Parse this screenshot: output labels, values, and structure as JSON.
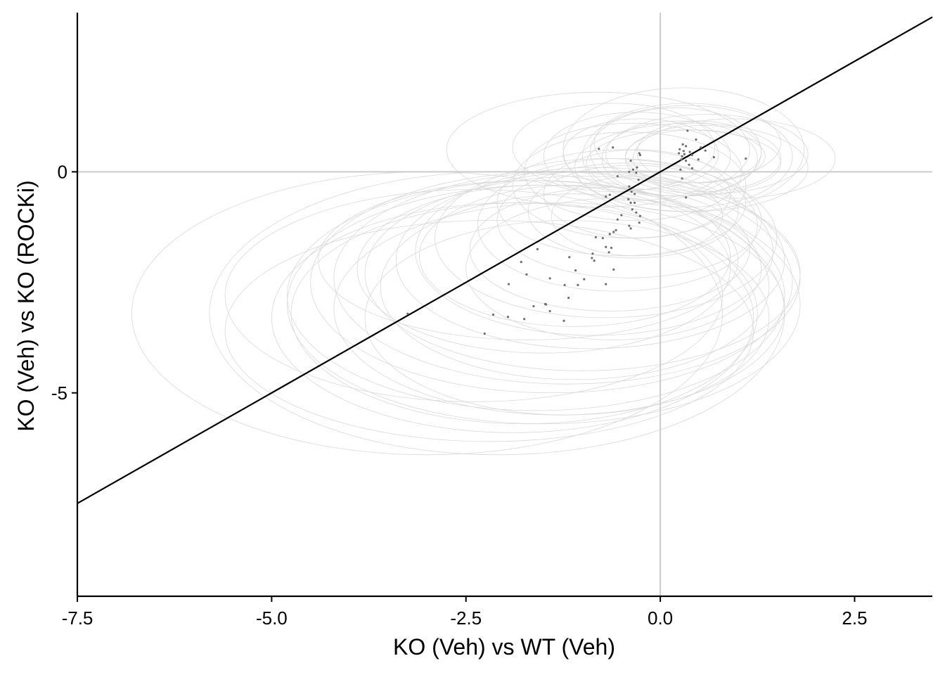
{
  "chart_data": {
    "type": "scatter",
    "xlabel": "KO (Veh) vs WT (Veh)",
    "ylabel": "KO (Veh) vs KO (ROCKi)",
    "xlim": [
      -7.5,
      3.5
    ],
    "ylim": [
      -9.6,
      3.6
    ],
    "x_ticks": [
      -7.5,
      -5.0,
      -2.5,
      0.0,
      2.5
    ],
    "x_tick_labels": [
      "-7.5",
      "-5.0",
      "-2.5",
      "0.0",
      "2.5"
    ],
    "y_ticks": [
      0,
      -5
    ],
    "y_tick_labels": [
      "0",
      "-5"
    ],
    "reference_lines": {
      "horizontal_y": 0,
      "vertical_x": 0,
      "diagonal_slope": 1,
      "diagonal_intercept": 0
    },
    "colors": {
      "points": "#6e6e6e",
      "ellipses": "#d9d9d9",
      "reference": "#cccccc",
      "diagonal": "#000000",
      "axis": "#000000"
    },
    "points": [
      {
        "x": 0.35,
        "y": 0.93
      },
      {
        "x": 0.46,
        "y": 0.73
      },
      {
        "x": 0.29,
        "y": 0.62
      },
      {
        "x": 0.33,
        "y": 0.58
      },
      {
        "x": 0.25,
        "y": 0.51
      },
      {
        "x": 0.3,
        "y": 0.47
      },
      {
        "x": 0.38,
        "y": 0.45
      },
      {
        "x": 0.52,
        "y": 0.55
      },
      {
        "x": 0.58,
        "y": 0.48
      },
      {
        "x": 0.41,
        "y": 0.38
      },
      {
        "x": 0.28,
        "y": 0.35
      },
      {
        "x": 0.33,
        "y": 0.25
      },
      {
        "x": 0.49,
        "y": 0.28
      },
      {
        "x": 0.69,
        "y": 0.33
      },
      {
        "x": 1.1,
        "y": 0.3
      },
      {
        "x": 0.37,
        "y": 0.16
      },
      {
        "x": 0.41,
        "y": 0.08
      },
      {
        "x": 0.26,
        "y": 0.05
      },
      {
        "x": 0.28,
        "y": -0.15
      },
      {
        "x": 0.33,
        "y": -0.58
      },
      {
        "x": 0.24,
        "y": 0.42
      },
      {
        "x": 0.31,
        "y": 0.4
      },
      {
        "x": 0.27,
        "y": 0.28
      },
      {
        "x": -0.79,
        "y": 0.52
      },
      {
        "x": -0.61,
        "y": 0.55
      },
      {
        "x": -0.26,
        "y": 0.38
      },
      {
        "x": -0.27,
        "y": 0.42
      },
      {
        "x": -0.38,
        "y": 0.25
      },
      {
        "x": -0.3,
        "y": 0.1
      },
      {
        "x": -0.35,
        "y": 0.05
      },
      {
        "x": -0.4,
        "y": 0.0
      },
      {
        "x": -0.31,
        "y": -0.02
      },
      {
        "x": -0.55,
        "y": -0.1
      },
      {
        "x": -0.28,
        "y": -0.18
      },
      {
        "x": -0.4,
        "y": -0.33
      },
      {
        "x": -0.37,
        "y": -0.45
      },
      {
        "x": -0.33,
        "y": -0.5
      },
      {
        "x": -0.65,
        "y": -0.52
      },
      {
        "x": -0.7,
        "y": -0.56
      },
      {
        "x": -0.41,
        "y": -0.62
      },
      {
        "x": -0.38,
        "y": -0.7
      },
      {
        "x": -0.33,
        "y": -0.7
      },
      {
        "x": -0.36,
        "y": -0.85
      },
      {
        "x": -0.31,
        "y": -0.92
      },
      {
        "x": -0.5,
        "y": -0.98
      },
      {
        "x": -0.26,
        "y": -1.0
      },
      {
        "x": -0.55,
        "y": -1.08
      },
      {
        "x": -0.27,
        "y": -1.15
      },
      {
        "x": -0.4,
        "y": -1.22
      },
      {
        "x": -0.38,
        "y": -1.28
      },
      {
        "x": -0.57,
        "y": -1.32
      },
      {
        "x": -0.6,
        "y": -1.36
      },
      {
        "x": -0.65,
        "y": -1.41
      },
      {
        "x": -0.83,
        "y": -1.48
      },
      {
        "x": -0.74,
        "y": -1.5
      },
      {
        "x": -0.7,
        "y": -1.7
      },
      {
        "x": -0.63,
        "y": -1.72
      },
      {
        "x": -0.66,
        "y": -1.82
      },
      {
        "x": -0.87,
        "y": -1.85
      },
      {
        "x": -0.88,
        "y": -1.95
      },
      {
        "x": -0.85,
        "y": -2.01
      },
      {
        "x": -0.6,
        "y": -2.21
      },
      {
        "x": -1.58,
        "y": -1.75
      },
      {
        "x": -1.79,
        "y": -2.04
      },
      {
        "x": -1.17,
        "y": -1.93
      },
      {
        "x": -1.09,
        "y": -2.23
      },
      {
        "x": -1.72,
        "y": -2.32
      },
      {
        "x": -1.42,
        "y": -2.41
      },
      {
        "x": -0.98,
        "y": -2.43
      },
      {
        "x": -1.95,
        "y": -2.54
      },
      {
        "x": -0.7,
        "y": -2.54
      },
      {
        "x": -1.23,
        "y": -2.56
      },
      {
        "x": -1.06,
        "y": -2.56
      },
      {
        "x": -1.18,
        "y": -2.85
      },
      {
        "x": -1.48,
        "y": -2.99
      },
      {
        "x": -1.47,
        "y": -3.0
      },
      {
        "x": -1.63,
        "y": -3.04
      },
      {
        "x": -1.42,
        "y": -3.15
      },
      {
        "x": -2.15,
        "y": -3.23
      },
      {
        "x": -1.96,
        "y": -3.28
      },
      {
        "x": -1.75,
        "y": -3.33
      },
      {
        "x": -1.24,
        "y": -3.37
      },
      {
        "x": -3.25,
        "y": -3.21
      },
      {
        "x": -2.26,
        "y": -3.66
      }
    ],
    "ellipses": [
      {
        "cx": 0.35,
        "cy": 0.35,
        "rx": 1.35,
        "ry": 1.15
      },
      {
        "cx": 0.3,
        "cy": 0.5,
        "rx": 1.55,
        "ry": 1.4
      },
      {
        "cx": 0.25,
        "cy": 0.3,
        "rx": 1.0,
        "ry": 0.85
      },
      {
        "cx": 0.55,
        "cy": 0.3,
        "rx": 1.0,
        "ry": 0.75
      },
      {
        "cx": 0.3,
        "cy": 0.2,
        "rx": 1.25,
        "ry": 0.75
      },
      {
        "cx": 0.6,
        "cy": 0.4,
        "rx": 1.3,
        "ry": 0.9
      },
      {
        "cx": 0.45,
        "cy": 0.35,
        "rx": 0.9,
        "ry": 0.6
      },
      {
        "cx": 0.95,
        "cy": 0.3,
        "rx": 1.3,
        "ry": 0.9
      },
      {
        "cx": 0.2,
        "cy": 0.45,
        "rx": 1.1,
        "ry": 1.0
      },
      {
        "cx": 0.4,
        "cy": 0.1,
        "rx": 1.5,
        "ry": 1.0
      },
      {
        "cx": 0.5,
        "cy": 0.45,
        "rx": 0.8,
        "ry": 0.7
      },
      {
        "cx": 0.35,
        "cy": 0.65,
        "rx": 1.2,
        "ry": 0.9
      },
      {
        "cx": -0.8,
        "cy": 0.5,
        "rx": 1.95,
        "ry": 1.3
      },
      {
        "cx": -0.6,
        "cy": 0.55,
        "rx": 1.3,
        "ry": 1.0
      },
      {
        "cx": -0.3,
        "cy": 0.35,
        "rx": 1.2,
        "ry": 1.0
      },
      {
        "cx": -0.25,
        "cy": 0.4,
        "rx": 1.0,
        "ry": 0.8
      },
      {
        "cx": -0.35,
        "cy": 0.0,
        "rx": 1.4,
        "ry": 1.1
      },
      {
        "cx": -0.4,
        "cy": -0.3,
        "rx": 1.5,
        "ry": 1.2
      },
      {
        "cx": -0.3,
        "cy": -0.5,
        "rx": 1.2,
        "ry": 1.0
      },
      {
        "cx": -0.5,
        "cy": -0.7,
        "rx": 1.6,
        "ry": 1.2
      },
      {
        "cx": -0.35,
        "cy": -0.9,
        "rx": 1.35,
        "ry": 1.05
      },
      {
        "cx": -0.4,
        "cy": -1.1,
        "rx": 1.7,
        "ry": 1.3
      },
      {
        "cx": -0.3,
        "cy": -1.0,
        "rx": 1.1,
        "ry": 0.9
      },
      {
        "cx": -0.55,
        "cy": -1.2,
        "rx": 1.8,
        "ry": 1.5
      },
      {
        "cx": -0.7,
        "cy": -1.5,
        "rx": 2.2,
        "ry": 1.8
      },
      {
        "cx": -0.85,
        "cy": -1.8,
        "rx": 2.3,
        "ry": 1.9
      },
      {
        "cx": -0.65,
        "cy": -1.75,
        "rx": 1.8,
        "ry": 1.4
      },
      {
        "cx": -0.9,
        "cy": -2.0,
        "rx": 2.5,
        "ry": 2.0
      },
      {
        "cx": -1.0,
        "cy": -2.3,
        "rx": 2.8,
        "ry": 2.2
      },
      {
        "cx": -1.2,
        "cy": -2.4,
        "rx": 3.0,
        "ry": 2.4
      },
      {
        "cx": -1.1,
        "cy": -2.6,
        "rx": 2.5,
        "ry": 2.1
      },
      {
        "cx": -1.4,
        "cy": -2.5,
        "rx": 3.1,
        "ry": 2.5
      },
      {
        "cx": -1.6,
        "cy": -2.8,
        "rx": 3.2,
        "ry": 2.6
      },
      {
        "cx": -1.5,
        "cy": -3.0,
        "rx": 3.3,
        "ry": 2.7
      },
      {
        "cx": -1.3,
        "cy": -3.1,
        "rx": 2.9,
        "ry": 2.4
      },
      {
        "cx": -1.75,
        "cy": -3.2,
        "rx": 3.0,
        "ry": 2.5
      },
      {
        "cx": -2.1,
        "cy": -3.2,
        "rx": 3.7,
        "ry": 3.2
      },
      {
        "cx": -1.9,
        "cy": -3.3,
        "rx": 3.1,
        "ry": 2.6
      },
      {
        "cx": -1.2,
        "cy": -3.3,
        "rx": 2.6,
        "ry": 2.2
      },
      {
        "cx": -3.0,
        "cy": -3.2,
        "rx": 3.8,
        "ry": 3.2
      },
      {
        "cx": -1.7,
        "cy": -2.0,
        "rx": 2.7,
        "ry": 1.8
      },
      {
        "cx": -2.2,
        "cy": -3.6,
        "rx": 3.4,
        "ry": 2.5
      },
      {
        "cx": -0.6,
        "cy": -2.2,
        "rx": 1.9,
        "ry": 1.6
      },
      {
        "cx": -1.5,
        "cy": -2.2,
        "rx": 2.4,
        "ry": 1.9
      },
      {
        "cx": -2.4,
        "cy": -2.8,
        "rx": 3.2,
        "ry": 2.4
      },
      {
        "cx": -1.1,
        "cy": -1.9,
        "rx": 2.0,
        "ry": 1.6
      }
    ]
  }
}
